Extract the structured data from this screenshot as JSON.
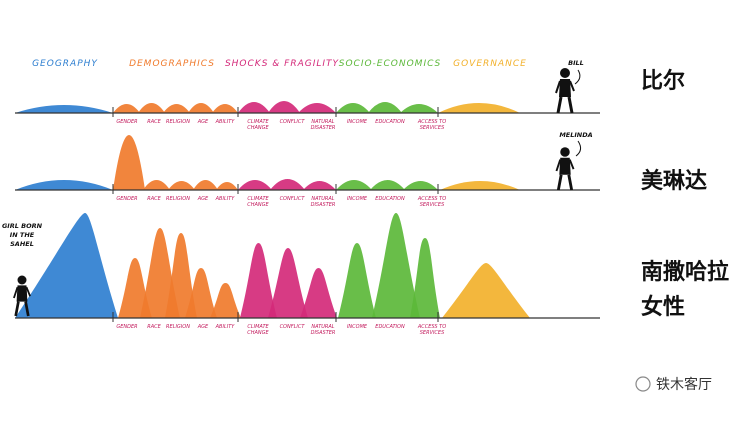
{
  "header": {
    "categories": [
      "GEOGRAPHY",
      "DEMOGRAPHICS",
      "SHOCKS & FRAGILITY",
      "SOCIO-ECONOMICS",
      "GOVERNANCE"
    ]
  },
  "rows": [
    {
      "person": [
        "BILL"
      ],
      "caption": [
        "比尔"
      ],
      "sublabels": [
        [
          "GENDER"
        ],
        [
          "RACE"
        ],
        [
          "RELIGION"
        ],
        [
          "AGE"
        ],
        [
          "ABILITY"
        ],
        [
          "CLIMATE",
          "CHANGE"
        ],
        [
          "CONFLICT"
        ],
        [
          "NATURAL",
          "DISASTER"
        ],
        [
          "INCOME"
        ],
        [
          "EDUCATION"
        ],
        [
          "ACCESS TO",
          "SERVICES"
        ]
      ]
    },
    {
      "person": [
        "MELINDA"
      ],
      "caption": [
        "美琳达"
      ],
      "sublabels": [
        [
          "GENDER"
        ],
        [
          "RACE"
        ],
        [
          "RELIGION"
        ],
        [
          "AGE"
        ],
        [
          "ABILITY"
        ],
        [
          "CLIMATE",
          "CHANGE"
        ],
        [
          "CONFLICT"
        ],
        [
          "NATURAL",
          "DISASTER"
        ],
        [
          "INCOME"
        ],
        [
          "EDUCATION"
        ],
        [
          "ACCESS TO",
          "SERVICES"
        ]
      ]
    },
    {
      "person": [
        "GIRL BORN",
        "IN THE",
        "SAHEL"
      ],
      "caption": [
        "南撒哈拉",
        "女性"
      ],
      "sublabels": [
        [
          "GENDER"
        ],
        [
          "RACE"
        ],
        [
          "RELIGION"
        ],
        [
          "AGE"
        ],
        [
          "ABILITY"
        ],
        [
          "CLIMATE",
          "CHANGE"
        ],
        [
          "CONFLICT"
        ],
        [
          "NATURAL",
          "DISASTER"
        ],
        [
          "INCOME"
        ],
        [
          "EDUCATION"
        ],
        [
          "ACCESS TO",
          "SERVICES"
        ]
      ]
    }
  ],
  "watermark": "铁木客厅"
}
